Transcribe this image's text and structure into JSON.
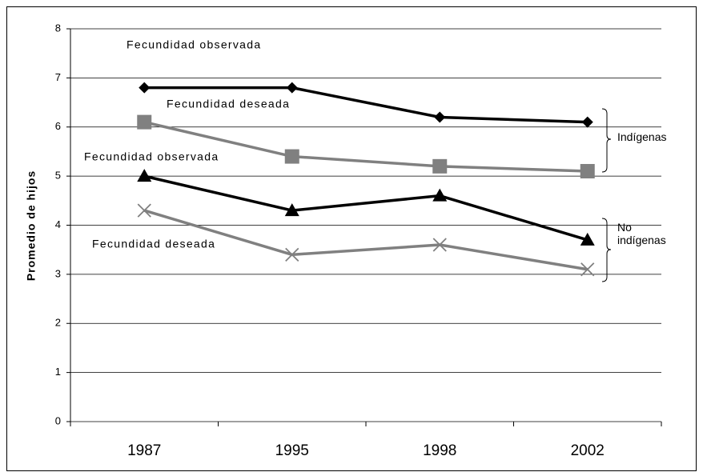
{
  "chart_data": {
    "type": "line",
    "y_label": "Promedio de hijos",
    "categories": [
      "1987",
      "1995",
      "1998",
      "2002"
    ],
    "ylim": [
      0,
      8
    ],
    "yticks": [
      0,
      1,
      2,
      3,
      4,
      5,
      6,
      7,
      8
    ],
    "grid": true,
    "series": [
      {
        "name": "Fecundidad observada",
        "color": "#000000",
        "marker": "diamond",
        "values": [
          6.8,
          6.8,
          6.2,
          6.1
        ]
      },
      {
        "name": "Fecundidad deseada",
        "color": "#808080",
        "marker": "square",
        "values": [
          6.1,
          5.4,
          5.2,
          5.1
        ]
      },
      {
        "name": "Fecundidad observada",
        "color": "#000000",
        "marker": "triangle",
        "values": [
          5.0,
          4.3,
          4.6,
          3.7
        ]
      },
      {
        "name": "Fecundidad deseada",
        "color": "#808080",
        "marker": "x",
        "values": [
          4.3,
          3.4,
          3.6,
          3.1
        ]
      }
    ],
    "groups": [
      "Indígenas",
      "No indígenas"
    ]
  }
}
